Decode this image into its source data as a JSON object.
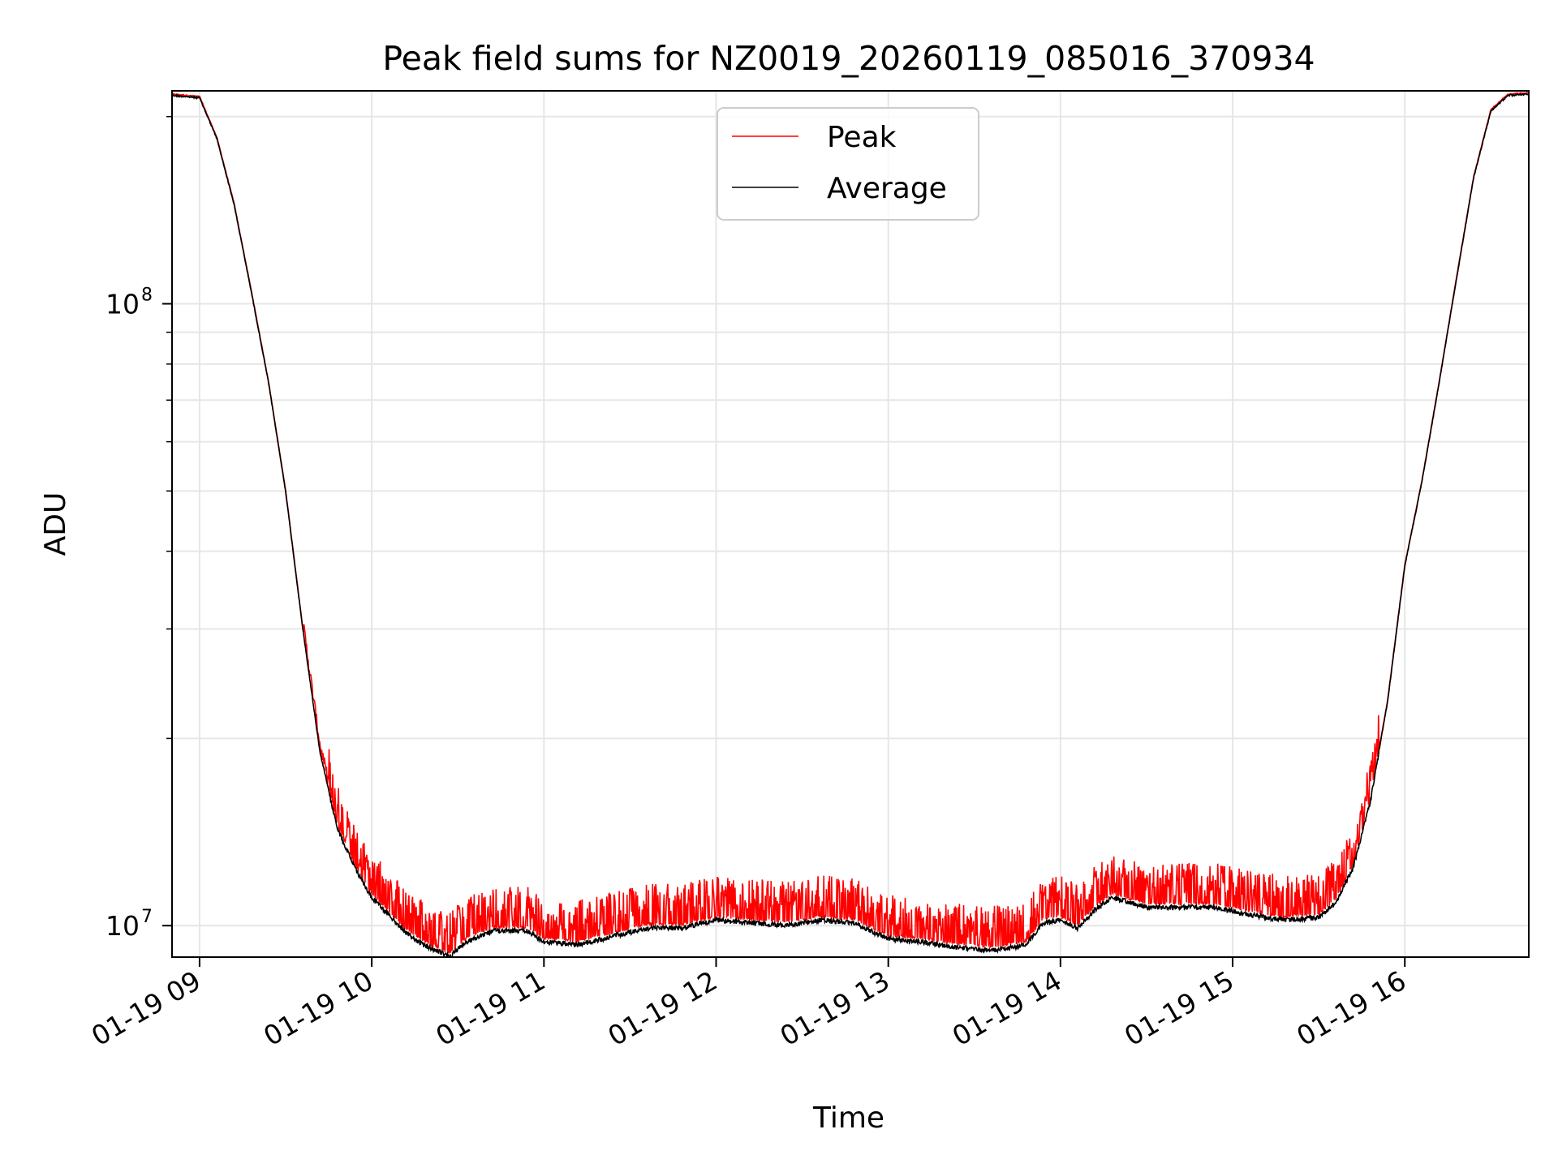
{
  "chart_data": {
    "type": "line",
    "title": "Peak field sums for NZ0019_20260119_085016_370934",
    "xlabel": "Time",
    "ylabel": "ADU",
    "yscale": "log",
    "xlim_hours": [
      8.84,
      16.72
    ],
    "ylim": [
      8900000,
      220000000
    ],
    "grid": true,
    "legend_position": "top-center",
    "x_ticks": [
      {
        "value": 9,
        "label": "01-19 09"
      },
      {
        "value": 10,
        "label": "01-19 10"
      },
      {
        "value": 11,
        "label": "01-19 11"
      },
      {
        "value": 12,
        "label": "01-19 12"
      },
      {
        "value": 13,
        "label": "01-19 13"
      },
      {
        "value": 14,
        "label": "01-19 14"
      },
      {
        "value": 15,
        "label": "01-19 15"
      },
      {
        "value": 16,
        "label": "01-19 16"
      }
    ],
    "y_major_ticks": [
      {
        "value": 10000000,
        "base": "10",
        "exp": "7"
      },
      {
        "value": 100000000,
        "base": "10",
        "exp": "8"
      }
    ],
    "y_minor_ticks": [
      20000000,
      30000000,
      40000000,
      50000000,
      60000000,
      70000000,
      80000000,
      90000000,
      200000000
    ],
    "average_curve_hours_vs_adu": [
      [
        8.84,
        217000000
      ],
      [
        9.0,
        215000000
      ],
      [
        9.1,
        185000000
      ],
      [
        9.2,
        145000000
      ],
      [
        9.3,
        105000000
      ],
      [
        9.4,
        75000000
      ],
      [
        9.5,
        50000000
      ],
      [
        9.6,
        30000000
      ],
      [
        9.7,
        19000000
      ],
      [
        9.8,
        14500000
      ],
      [
        9.9,
        12500000
      ],
      [
        10.0,
        11200000
      ],
      [
        10.1,
        10500000
      ],
      [
        10.2,
        9800000
      ],
      [
        10.3,
        9400000
      ],
      [
        10.45,
        9000000
      ],
      [
        10.55,
        9500000
      ],
      [
        10.7,
        9900000
      ],
      [
        10.9,
        9900000
      ],
      [
        11.0,
        9500000
      ],
      [
        11.2,
        9400000
      ],
      [
        11.4,
        9700000
      ],
      [
        11.6,
        10000000
      ],
      [
        11.8,
        10000000
      ],
      [
        12.0,
        10300000
      ],
      [
        12.2,
        10200000
      ],
      [
        12.4,
        10100000
      ],
      [
        12.6,
        10300000
      ],
      [
        12.8,
        10200000
      ],
      [
        13.0,
        9600000
      ],
      [
        13.2,
        9500000
      ],
      [
        13.4,
        9300000
      ],
      [
        13.6,
        9200000
      ],
      [
        13.8,
        9400000
      ],
      [
        13.9,
        10200000
      ],
      [
        14.0,
        10300000
      ],
      [
        14.1,
        10000000
      ],
      [
        14.2,
        10700000
      ],
      [
        14.3,
        11200000
      ],
      [
        14.5,
        10800000
      ],
      [
        14.7,
        10800000
      ],
      [
        14.9,
        10800000
      ],
      [
        15.1,
        10500000
      ],
      [
        15.3,
        10300000
      ],
      [
        15.5,
        10400000
      ],
      [
        15.6,
        11000000
      ],
      [
        15.7,
        12500000
      ],
      [
        15.8,
        16000000
      ],
      [
        15.9,
        23000000
      ],
      [
        16.0,
        38000000
      ],
      [
        16.1,
        52000000
      ],
      [
        16.2,
        75000000
      ],
      [
        16.3,
        110000000
      ],
      [
        16.4,
        160000000
      ],
      [
        16.5,
        205000000
      ],
      [
        16.6,
        217000000
      ],
      [
        16.72,
        218000000
      ]
    ],
    "series": [
      {
        "name": "Peak",
        "color": "#ff0000",
        "role": "upper envelope with spikes"
      },
      {
        "name": "Average",
        "color": "#000000",
        "role": "baseline"
      }
    ]
  }
}
